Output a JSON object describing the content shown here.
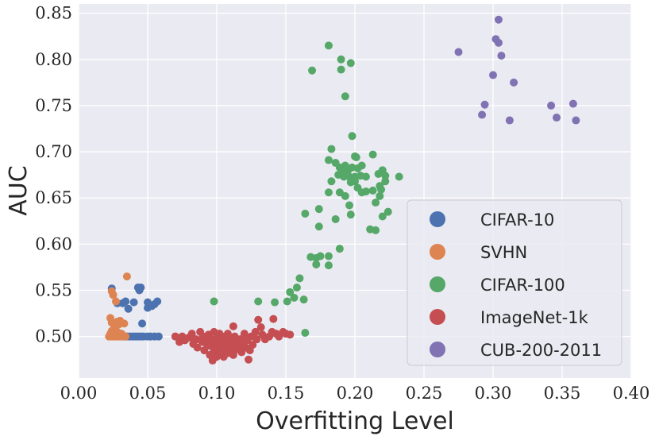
{
  "chart_data": {
    "type": "scatter",
    "title": "",
    "xlabel": "Overfitting Level",
    "ylabel": "AUC",
    "xlim": [
      0.0,
      0.4
    ],
    "ylim": [
      0.455,
      0.86
    ],
    "xticks": [
      0.0,
      0.05,
      0.1,
      0.15,
      0.2,
      0.25,
      0.3,
      0.35,
      0.4
    ],
    "xtick_labels": [
      "0.00",
      "0.05",
      "0.10",
      "0.15",
      "0.20",
      "0.25",
      "0.30",
      "0.35",
      "0.40"
    ],
    "yticks": [
      0.5,
      0.55,
      0.6,
      0.65,
      0.7,
      0.75,
      0.8,
      0.85
    ],
    "ytick_labels": [
      "0.50",
      "0.55",
      "0.60",
      "0.65",
      "0.70",
      "0.75",
      "0.80",
      "0.85"
    ],
    "grid": true,
    "legend_position": "bottom-right",
    "series": [
      {
        "name": "CIFAR-10",
        "color": "#4c72b0",
        "points": [
          [
            0.024,
            0.552
          ],
          [
            0.028,
            0.536
          ],
          [
            0.032,
            0.536
          ],
          [
            0.034,
            0.538
          ],
          [
            0.036,
            0.53
          ],
          [
            0.04,
            0.537
          ],
          [
            0.043,
            0.553
          ],
          [
            0.045,
            0.553
          ],
          [
            0.044,
            0.55
          ],
          [
            0.046,
            0.514
          ],
          [
            0.05,
            0.537
          ],
          [
            0.05,
            0.531
          ],
          [
            0.053,
            0.533
          ],
          [
            0.055,
            0.535
          ],
          [
            0.057,
            0.538
          ],
          [
            0.033,
            0.5
          ],
          [
            0.035,
            0.5
          ],
          [
            0.037,
            0.5
          ],
          [
            0.039,
            0.5
          ],
          [
            0.041,
            0.5
          ],
          [
            0.043,
            0.5
          ],
          [
            0.045,
            0.5
          ],
          [
            0.047,
            0.5
          ],
          [
            0.05,
            0.5
          ],
          [
            0.052,
            0.5
          ],
          [
            0.055,
            0.5
          ],
          [
            0.058,
            0.5
          ]
        ]
      },
      {
        "name": "SVHN",
        "color": "#dd8452",
        "points": [
          [
            0.035,
            0.565
          ],
          [
            0.024,
            0.549
          ],
          [
            0.025,
            0.545
          ],
          [
            0.027,
            0.538
          ],
          [
            0.023,
            0.52
          ],
          [
            0.024,
            0.515
          ],
          [
            0.026,
            0.51
          ],
          [
            0.028,
            0.505
          ],
          [
            0.023,
            0.503
          ],
          [
            0.022,
            0.5
          ],
          [
            0.024,
            0.5
          ],
          [
            0.026,
            0.5
          ],
          [
            0.027,
            0.502
          ],
          [
            0.028,
            0.5
          ],
          [
            0.029,
            0.513
          ],
          [
            0.03,
            0.517
          ],
          [
            0.03,
            0.5
          ],
          [
            0.031,
            0.503
          ],
          [
            0.032,
            0.5
          ],
          [
            0.033,
            0.514
          ],
          [
            0.034,
            0.5
          ],
          [
            0.024,
            0.506
          ],
          [
            0.026,
            0.509
          ],
          [
            0.028,
            0.516
          ],
          [
            0.025,
            0.5
          ]
        ]
      },
      {
        "name": "CIFAR-100",
        "color": "#55a868",
        "points": [
          [
            0.181,
            0.815
          ],
          [
            0.19,
            0.8
          ],
          [
            0.197,
            0.796
          ],
          [
            0.169,
            0.788
          ],
          [
            0.19,
            0.789
          ],
          [
            0.193,
            0.76
          ],
          [
            0.198,
            0.717
          ],
          [
            0.183,
            0.703
          ],
          [
            0.2,
            0.695
          ],
          [
            0.201,
            0.694
          ],
          [
            0.213,
            0.697
          ],
          [
            0.181,
            0.691
          ],
          [
            0.186,
            0.688
          ],
          [
            0.189,
            0.683
          ],
          [
            0.193,
            0.685
          ],
          [
            0.191,
            0.679
          ],
          [
            0.195,
            0.68
          ],
          [
            0.198,
            0.683
          ],
          [
            0.202,
            0.682
          ],
          [
            0.205,
            0.685
          ],
          [
            0.22,
            0.68
          ],
          [
            0.188,
            0.675
          ],
          [
            0.192,
            0.673
          ],
          [
            0.196,
            0.673
          ],
          [
            0.2,
            0.673
          ],
          [
            0.204,
            0.674
          ],
          [
            0.208,
            0.673
          ],
          [
            0.217,
            0.676
          ],
          [
            0.222,
            0.674
          ],
          [
            0.232,
            0.673
          ],
          [
            0.183,
            0.668
          ],
          [
            0.197,
            0.667
          ],
          [
            0.2,
            0.668
          ],
          [
            0.222,
            0.668
          ],
          [
            0.202,
            0.661
          ],
          [
            0.208,
            0.657
          ],
          [
            0.213,
            0.658
          ],
          [
            0.219,
            0.659
          ],
          [
            0.218,
            0.663
          ],
          [
            0.181,
            0.656
          ],
          [
            0.193,
            0.652
          ],
          [
            0.189,
            0.656
          ],
          [
            0.205,
            0.656
          ],
          [
            0.218,
            0.652
          ],
          [
            0.196,
            0.642
          ],
          [
            0.174,
            0.638
          ],
          [
            0.215,
            0.645
          ],
          [
            0.22,
            0.63
          ],
          [
            0.224,
            0.635
          ],
          [
            0.197,
            0.632
          ],
          [
            0.164,
            0.633
          ],
          [
            0.186,
            0.627
          ],
          [
            0.174,
            0.619
          ],
          [
            0.211,
            0.616
          ],
          [
            0.215,
            0.615
          ],
          [
            0.189,
            0.595
          ],
          [
            0.168,
            0.586
          ],
          [
            0.172,
            0.585
          ],
          [
            0.175,
            0.587
          ],
          [
            0.181,
            0.587
          ],
          [
            0.172,
            0.578
          ],
          [
            0.181,
            0.577
          ],
          [
            0.16,
            0.563
          ],
          [
            0.158,
            0.553
          ],
          [
            0.153,
            0.548
          ],
          [
            0.163,
            0.54
          ],
          [
            0.156,
            0.542
          ],
          [
            0.151,
            0.538
          ],
          [
            0.142,
            0.537
          ],
          [
            0.13,
            0.538
          ],
          [
            0.098,
            0.538
          ],
          [
            0.164,
            0.504
          ]
        ]
      },
      {
        "name": "ImageNet-1k",
        "color": "#c44e52",
        "points": [
          [
            0.07,
            0.5
          ],
          [
            0.073,
            0.494
          ],
          [
            0.075,
            0.5
          ],
          [
            0.077,
            0.496
          ],
          [
            0.08,
            0.499
          ],
          [
            0.082,
            0.503
          ],
          [
            0.083,
            0.492
          ],
          [
            0.085,
            0.497
          ],
          [
            0.086,
            0.488
          ],
          [
            0.088,
            0.505
          ],
          [
            0.089,
            0.495
          ],
          [
            0.09,
            0.5
          ],
          [
            0.091,
            0.485
          ],
          [
            0.092,
            0.493
          ],
          [
            0.093,
            0.498
          ],
          [
            0.094,
            0.502
          ],
          [
            0.095,
            0.48
          ],
          [
            0.095,
            0.49
          ],
          [
            0.096,
            0.497
          ],
          [
            0.097,
            0.474
          ],
          [
            0.098,
            0.505
          ],
          [
            0.098,
            0.485
          ],
          [
            0.099,
            0.492
          ],
          [
            0.1,
            0.498
          ],
          [
            0.1,
            0.478
          ],
          [
            0.101,
            0.488
          ],
          [
            0.102,
            0.503
          ],
          [
            0.102,
            0.482
          ],
          [
            0.103,
            0.494
          ],
          [
            0.104,
            0.5
          ],
          [
            0.104,
            0.486
          ],
          [
            0.105,
            0.478
          ],
          [
            0.106,
            0.496
          ],
          [
            0.107,
            0.49
          ],
          [
            0.108,
            0.503
          ],
          [
            0.108,
            0.482
          ],
          [
            0.109,
            0.497
          ],
          [
            0.11,
            0.487
          ],
          [
            0.111,
            0.493
          ],
          [
            0.112,
            0.511
          ],
          [
            0.112,
            0.48
          ],
          [
            0.113,
            0.5
          ],
          [
            0.114,
            0.486
          ],
          [
            0.115,
            0.494
          ],
          [
            0.116,
            0.49
          ],
          [
            0.117,
            0.497
          ],
          [
            0.118,
            0.483
          ],
          [
            0.119,
            0.492
          ],
          [
            0.12,
            0.503
          ],
          [
            0.121,
            0.488
          ],
          [
            0.122,
            0.496
          ],
          [
            0.123,
            0.475
          ],
          [
            0.124,
            0.485
          ],
          [
            0.125,
            0.5
          ],
          [
            0.126,
            0.491
          ],
          [
            0.128,
            0.505
          ],
          [
            0.129,
            0.497
          ],
          [
            0.13,
            0.518
          ],
          [
            0.132,
            0.51
          ],
          [
            0.133,
            0.502
          ],
          [
            0.135,
            0.497
          ],
          [
            0.138,
            0.5
          ],
          [
            0.14,
            0.505
          ],
          [
            0.141,
            0.519
          ],
          [
            0.143,
            0.503
          ],
          [
            0.145,
            0.5
          ],
          [
            0.148,
            0.505
          ],
          [
            0.15,
            0.503
          ],
          [
            0.153,
            0.502
          ],
          [
            0.09,
            0.494
          ],
          [
            0.105,
            0.499
          ]
        ]
      },
      {
        "name": "CUB-200-2011",
        "color": "#8172b3",
        "points": [
          [
            0.304,
            0.843
          ],
          [
            0.302,
            0.822
          ],
          [
            0.304,
            0.818
          ],
          [
            0.275,
            0.808
          ],
          [
            0.306,
            0.804
          ],
          [
            0.3,
            0.783
          ],
          [
            0.315,
            0.775
          ],
          [
            0.294,
            0.751
          ],
          [
            0.342,
            0.75
          ],
          [
            0.358,
            0.752
          ],
          [
            0.292,
            0.74
          ],
          [
            0.346,
            0.737
          ],
          [
            0.312,
            0.734
          ],
          [
            0.36,
            0.734
          ]
        ]
      }
    ]
  }
}
